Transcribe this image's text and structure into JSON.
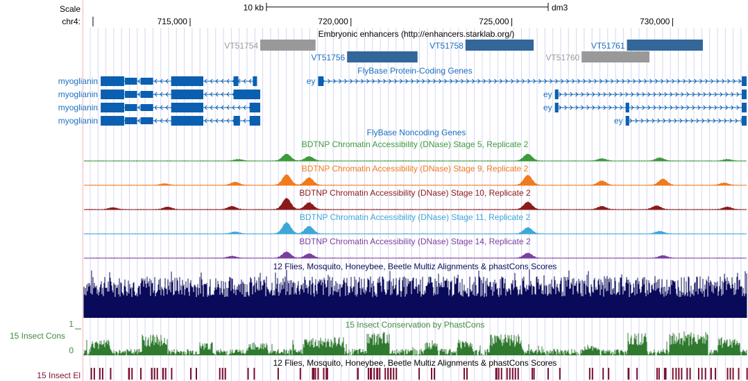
{
  "ruler": {
    "scale_label": "Scale",
    "chrom_label": "chr4:",
    "scale_bar_text": "10 kb",
    "assembly": "dm3",
    "ticks": [
      {
        "pos": 715000,
        "label": "715,000"
      },
      {
        "pos": 720000,
        "label": "720,000"
      },
      {
        "pos": 725000,
        "label": "725,000"
      },
      {
        "pos": 730000,
        "label": "730,000"
      }
    ]
  },
  "enhancers": {
    "title": "Embryonic enhancers (http://enhancers.starklab.org/)",
    "items": [
      {
        "name": "VT51754",
        "start": 717180,
        "end": 718900,
        "row": 0,
        "active": false
      },
      {
        "name": "VT51756",
        "start": 719880,
        "end": 722070,
        "row": 1,
        "active": true
      },
      {
        "name": "VT51758",
        "start": 723560,
        "end": 725680,
        "row": 0,
        "active": true
      },
      {
        "name": "VT51760",
        "start": 727170,
        "end": 729280,
        "row": 1,
        "active": false
      },
      {
        "name": "VT51761",
        "start": 728580,
        "end": 730940,
        "row": 0,
        "active": true
      }
    ]
  },
  "coding_genes": {
    "title": "FlyBase Protein-Coding Genes",
    "myoglianin": {
      "label": "myoglianin",
      "span": [
        712220,
        717180
      ],
      "strand": "-",
      "isoforms": [
        {
          "exons": [
            [
              712220,
              712950
            ],
            [
              712970,
              713350
            ],
            [
              713460,
              713850
            ],
            [
              714410,
              715410
            ],
            [
              716350,
              716500
            ],
            [
              716950,
              717080
            ]
          ]
        },
        {
          "exons": [
            [
              712220,
              712950
            ],
            [
              712970,
              713350
            ],
            [
              713460,
              713850
            ],
            [
              714410,
              715410
            ],
            [
              716350,
              717180
            ]
          ]
        },
        {
          "exons": [
            [
              712220,
              712950
            ],
            [
              712970,
              713350
            ],
            [
              713460,
              713850
            ],
            [
              714410,
              715410
            ],
            [
              716850,
              717180
            ]
          ]
        },
        {
          "exons": [
            [
              712220,
              712950
            ],
            [
              712970,
              713350
            ],
            [
              713460,
              713850
            ],
            [
              714410,
              715410
            ],
            [
              716350,
              716550
            ],
            [
              716850,
              717180
            ]
          ]
        }
      ]
    },
    "ey": {
      "label": "ey",
      "strand": "+",
      "isoforms": [
        {
          "span": [
            718980,
            732300
          ],
          "exons": [
            [
              718980,
              719150
            ],
            [
              732150,
              732300
            ]
          ],
          "label_side": "left"
        },
        {
          "span": [
            726340,
            732300
          ],
          "exons": [
            [
              726340,
              726450
            ],
            [
              732150,
              732300
            ]
          ],
          "label_side": "left"
        },
        {
          "span": [
            726340,
            732300
          ],
          "exons": [
            [
              726340,
              726450
            ],
            [
              728540,
              728650
            ],
            [
              732150,
              732300
            ]
          ],
          "label_side": "left"
        },
        {
          "span": [
            728540,
            732300
          ],
          "exons": [
            [
              728540,
              728650
            ],
            [
              732150,
              732300
            ]
          ],
          "label_side": "left"
        }
      ]
    }
  },
  "noncoding_title": "FlyBase Noncoding Genes",
  "dnase_tracks": [
    {
      "title": "BDTNP Chromatin Accessibility (DNase) Stage 5, Replicate 2",
      "color": "#3d9a3d",
      "peaks": [
        [
          718000,
          0.55
        ],
        [
          718700,
          0.35
        ],
        [
          716500,
          0.12
        ],
        [
          725500,
          0.55
        ],
        [
          727800,
          0.18
        ],
        [
          729600,
          0.25
        ],
        [
          731700,
          0.12
        ]
      ]
    },
    {
      "title": "BDTNP Chromatin Accessibility (DNase) Stage 9, Replicate 2",
      "color": "#f07a1e",
      "peaks": [
        [
          718000,
          0.85
        ],
        [
          718700,
          0.6
        ],
        [
          716400,
          0.25
        ],
        [
          714200,
          0.12
        ],
        [
          725500,
          0.8
        ],
        [
          727800,
          0.35
        ],
        [
          729700,
          0.5
        ],
        [
          731600,
          0.18
        ]
      ]
    },
    {
      "title": "BDTNP Chromatin Accessibility (DNase) Stage 10, Replicate 2",
      "color": "#8b1a1a",
      "peaks": [
        [
          718000,
          0.9
        ],
        [
          718700,
          0.55
        ],
        [
          716300,
          0.25
        ],
        [
          714300,
          0.2
        ],
        [
          712600,
          0.15
        ],
        [
          725500,
          0.6
        ],
        [
          727800,
          0.25
        ],
        [
          729500,
          0.3
        ],
        [
          731700,
          0.2
        ]
      ]
    },
    {
      "title": "BDTNP Chromatin Accessibility (DNase) Stage 11, Replicate 2",
      "color": "#3fa7d6",
      "peaks": [
        [
          718000,
          0.9
        ],
        [
          718700,
          0.6
        ],
        [
          716400,
          0.15
        ],
        [
          725500,
          0.5
        ],
        [
          729600,
          0.2
        ]
      ]
    },
    {
      "title": "BDTNP Chromatin Accessibility (DNase) Stage 14, Replicate 2",
      "color": "#7b3fa0",
      "peaks": [
        [
          718000,
          0.5
        ],
        [
          718700,
          0.35
        ],
        [
          716300,
          0.15
        ],
        [
          725500,
          0.4
        ],
        [
          729700,
          0.2
        ]
      ]
    }
  ],
  "multiz": {
    "title": "12 Flies, Mosquito, Honeybee, Beetle Multiz Alignments & phastCons Scores",
    "color": "#0a0a5a"
  },
  "phastcons": {
    "title": "15 Insect Conservation by PhastCons",
    "side_label": "15 Insect Cons",
    "y_max_label": "1",
    "y_min_label": "0",
    "color": "#2f7a2f",
    "blocks": [
      [
        711900,
        712500,
        0.6
      ],
      [
        713500,
        714300,
        0.8
      ],
      [
        715300,
        715700,
        0.5
      ],
      [
        716800,
        717400,
        0.5
      ],
      [
        718500,
        719800,
        0.7
      ],
      [
        720500,
        721200,
        0.9
      ],
      [
        722300,
        722700,
        0.5
      ],
      [
        723300,
        723800,
        0.6
      ],
      [
        724300,
        725300,
        0.8
      ],
      [
        727200,
        727700,
        0.4
      ],
      [
        728600,
        729200,
        0.9
      ],
      [
        729900,
        731100,
        0.9
      ],
      [
        731400,
        732100,
        0.7
      ]
    ]
  },
  "elements": {
    "title": "12 Flies, Mosquito, Honeybee, Beetle Multiz Alignments & phastCons Scores",
    "side_label": "15 Insect El",
    "color": "#7a0f2e",
    "blocks": [
      [
        712000,
        712300
      ],
      [
        713000,
        713200
      ],
      [
        713700,
        714300
      ],
      [
        715000,
        715200
      ],
      [
        715900,
        716100
      ],
      [
        716800,
        717000
      ],
      [
        718700,
        719300
      ],
      [
        720700,
        721400
      ],
      [
        722400,
        722700
      ],
      [
        723500,
        723700
      ],
      [
        724400,
        725300
      ],
      [
        726300,
        726500
      ],
      [
        727400,
        727600
      ],
      [
        728700,
        729100
      ],
      [
        730000,
        730500
      ],
      [
        731000,
        731200
      ],
      [
        731600,
        732100
      ]
    ]
  }
}
